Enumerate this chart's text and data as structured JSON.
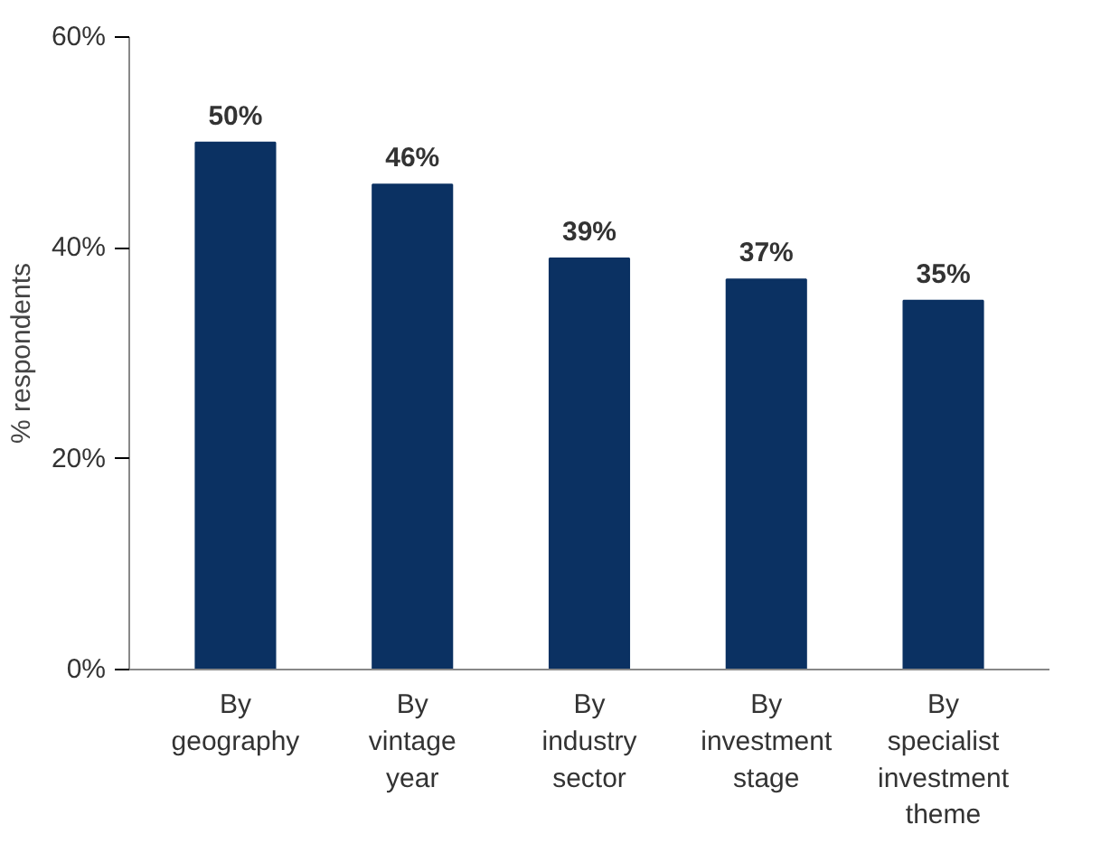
{
  "chart_data": {
    "type": "bar",
    "ylabel": "% respondents",
    "categories": [
      "By\ngeography",
      "By\nvintage\nyear",
      "By\nindustry\nsector",
      "By\ninvestment\nstage",
      "By\nspecialist\ninvestment\ntheme"
    ],
    "values": [
      50,
      46,
      39,
      37,
      35
    ],
    "value_labels": [
      "50%",
      "46%",
      "39%",
      "37%",
      "35%"
    ],
    "color": "#0b3162",
    "ylim": [
      0,
      60
    ],
    "yticks": [
      {
        "value": 0,
        "label": "0%"
      },
      {
        "value": 20,
        "label": "20%"
      },
      {
        "value": 40,
        "label": "40%"
      },
      {
        "value": 60,
        "label": "60%"
      }
    ],
    "grid": false
  }
}
